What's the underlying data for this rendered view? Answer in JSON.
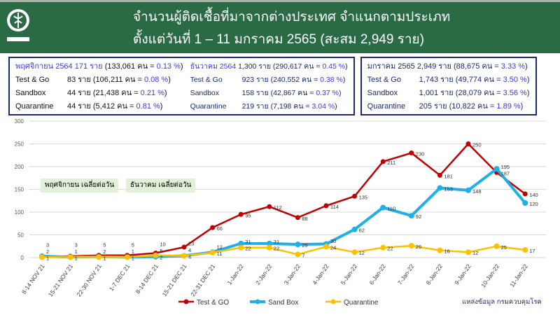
{
  "header": {
    "title_line1": "จำนวนผู้ติดเชื้อที่มาจากต่างประเทศ จำแนกตามประเภท",
    "title_line2": "ตั้งแต่วันที่  1 – 11  มกราคม  2565 (สะสม 2,949 ราย)",
    "logo_text": "กรมควบคุมโรค",
    "bg_color": "#2a6b46"
  },
  "summary": {
    "nov": {
      "head": "พฤศจิกายน 2564  171 ราย",
      "head_tail": "(133,061 คน = ",
      "head_pct": "0.13 %",
      "close": ")",
      "rows": [
        {
          "label": "Test & Go",
          "count": "83  ราย (106,211 คน = ",
          "pct": "0.08 %"
        },
        {
          "label": "Sandbox",
          "count": "44  ราย  (21,438 คน  = ",
          "pct": "0.21 %"
        },
        {
          "label": "Quarantine",
          "count": "44  ราย  (5,412 คน   = ",
          "pct": "0.81 %"
        }
      ]
    },
    "dec": {
      "head": "ธันวาคม 2564",
      "head_tail": "1,300 ราย (290,617 คน = ",
      "head_pct": "0.45 %",
      "rows": [
        {
          "label": "Test & Go",
          "count": "923  ราย (240,552 คน = ",
          "pct": "0.38 %"
        },
        {
          "label": "Sandbox",
          "count": "158  ราย (42,867 คน   = ",
          "pct": "0.37 %"
        },
        {
          "label": "Quarantine",
          "count": "219  ราย (7,198 คน    = ",
          "pct": "3.04 %"
        }
      ]
    },
    "jan": {
      "head": "มกราคม 2565 2,949 ราย (88,675 คน = ",
      "head_pct": "3.33 %",
      "rows": [
        {
          "label": "Test & Go",
          "count": "1,743 ราย (49,774 คน = ",
          "pct": "3.50 %"
        },
        {
          "label": "Sandbox",
          "count": "1,001 ราย (28,079 คน = ",
          "pct": "3.56 %"
        },
        {
          "label": "Quarantine",
          "count": "205 ราย (10,822 คน = ",
          "pct": "1.89 %"
        }
      ]
    }
  },
  "notes": {
    "nov": "พฤศจิกายน  เฉลี่ยต่อวัน",
    "dec": "ธันวาคม  เฉลี่ยต่อวัน"
  },
  "source": "แหล่งข้อมูล  กรมควบคุมโรค",
  "chart_data": {
    "type": "line",
    "categories": [
      "8-14 NOV 21",
      "15-21 NOV 21",
      "22-30 NOV 21",
      "1-7 DEC 21",
      "8-14 DEC 21",
      "15-21 DEC 21",
      "22-31 DEC 21",
      "1-Jan-22",
      "2-Jan-22",
      "3-Jan-22",
      "4-Jan-22",
      "5-Jan-22",
      "6-Jan-22",
      "7-Jan-22",
      "8-Jan-22",
      "9-Jan-22",
      "10-Jan-22",
      "11-Jan-22"
    ],
    "series": [
      {
        "name": "Test & GO",
        "color": "#c00000",
        "values": [
          2,
          3,
          5,
          5,
          10,
          23,
          66,
          95,
          112,
          88,
          114,
          135,
          211,
          230,
          181,
          250,
          187,
          140
        ]
      },
      {
        "name": "Sand Box",
        "color": "#1fb0e8",
        "values": [
          3,
          1,
          2,
          1,
          2,
          4,
          12,
          31,
          31,
          29,
          30,
          62,
          110,
          92,
          153,
          148,
          195,
          120
        ]
      },
      {
        "name": "Quarantine",
        "color": "#ffc000",
        "values": [
          1,
          1,
          1,
          1,
          5,
          4,
          11,
          22,
          22,
          7,
          24,
          12,
          22,
          26,
          16,
          12,
          25,
          17
        ]
      }
    ],
    "yticks": [
      0,
      50,
      100,
      150,
      200,
      250,
      300
    ],
    "ylim": [
      0,
      300
    ],
    "grid": true,
    "legend": "bottom"
  }
}
